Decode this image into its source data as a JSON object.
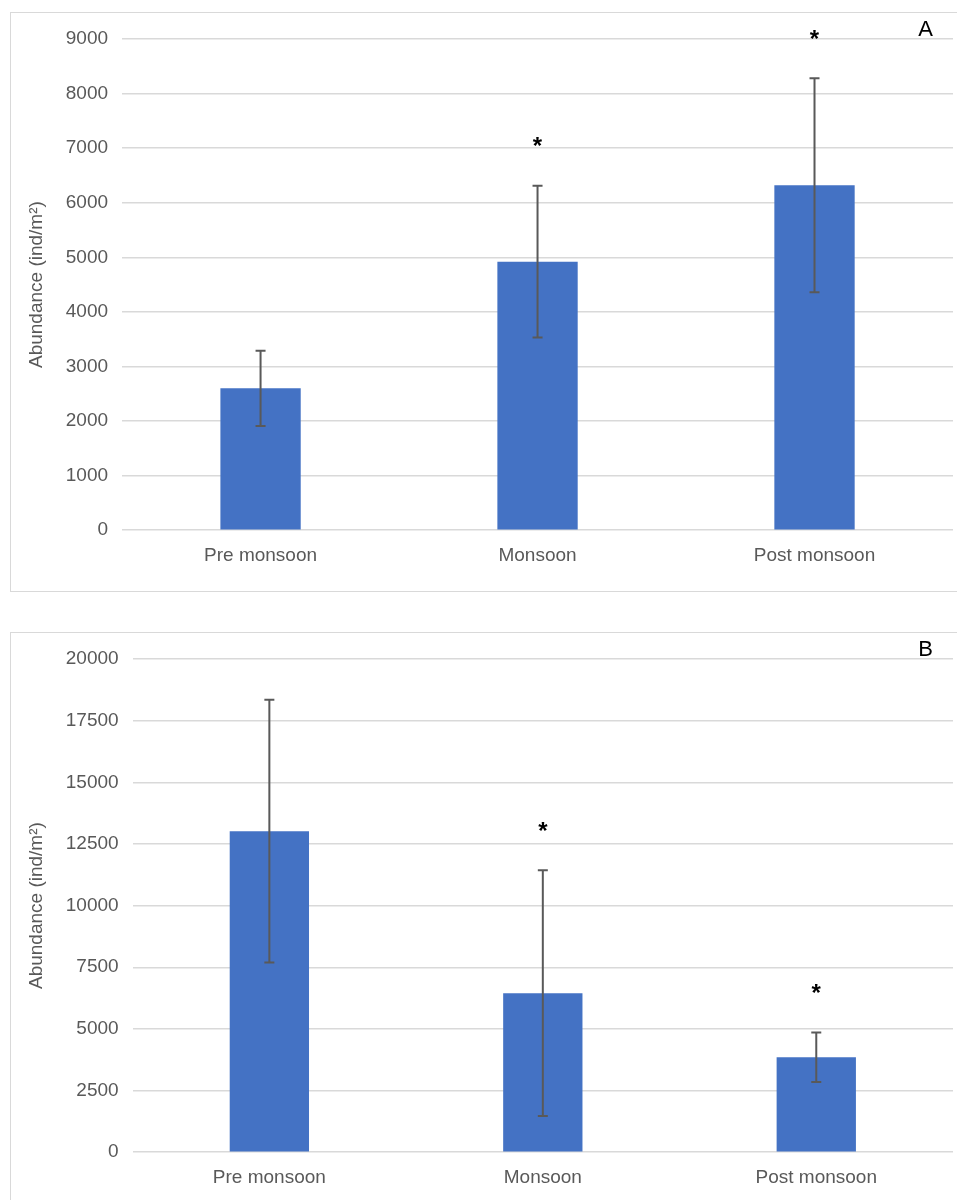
{
  "chart_data": [
    {
      "type": "bar",
      "ylabel": "Abundance (ind/m²)",
      "categories": [
        "Pre monsoon",
        "Monsoon",
        "Post monsoon"
      ],
      "values": [
        2600,
        4920,
        6320
      ],
      "errors": [
        690,
        1390,
        1960
      ],
      "color": "#4472c4",
      "ylim": [
        0,
        9000
      ],
      "yticks": [
        0,
        1000,
        2000,
        3000,
        4000,
        5000,
        6000,
        7000,
        8000,
        9000
      ],
      "grid": "y",
      "legend": false,
      "annotations": [
        "A",
        "*",
        "*"
      ]
    },
    {
      "type": "bar",
      "ylabel": "Abundance (ind/m²)",
      "categories": [
        "Pre monsoon",
        "Monsoon",
        "Post monsoon"
      ],
      "values": [
        13020,
        6450,
        3850
      ],
      "errors": [
        5330,
        4980,
        1000
      ],
      "color": "#4472c4",
      "ylim": [
        0,
        20000
      ],
      "yticks": [
        0,
        2500,
        5000,
        7500,
        10000,
        12500,
        15000,
        17500,
        20000
      ],
      "grid": "y",
      "legend": false,
      "annotations": [
        "B",
        "*",
        "*"
      ]
    }
  ]
}
